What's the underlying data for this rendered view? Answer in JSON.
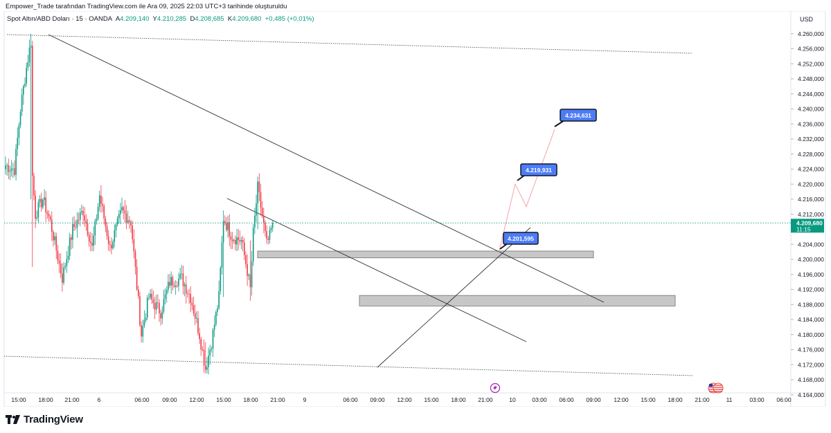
{
  "header": {
    "title": "Empower_Trade tarafından TradingView.com ile Ara 09, 2025 22:03 UTC+3 tarihinde oluşturuldu"
  },
  "ohlc": {
    "symbol": "Spot Altın/ABD Doları · 15 · OANDA",
    "open_label": "A",
    "open": "4.209,140",
    "high_label": "Y",
    "high": "4.210,285",
    "low_label": "D",
    "low": "4.208,685",
    "close_label": "K",
    "close": "4.209,680",
    "change": "+0,485 (+0,01%)"
  },
  "price_axis": {
    "currency": "USD"
  },
  "current_price": {
    "value": "4.209,680",
    "countdown": "11:15"
  },
  "footer": {
    "brand": "TradingView"
  },
  "colors": {
    "up": "#089981",
    "down": "#f23645",
    "accent": "#2962ff",
    "label": "#4d7cf7"
  },
  "chart_data": {
    "type": "candlestick",
    "title": "",
    "ylim": [
      4162,
      4262
    ],
    "yticks": [
      "4.260,000",
      "4.256,000",
      "4.252,000",
      "4.248,000",
      "4.244,000",
      "4.240,000",
      "4.236,000",
      "4.232,000",
      "4.228,000",
      "4.224,000",
      "4.220,000",
      "4.216,000",
      "4.212,000",
      "4.208,000",
      "4.204,000",
      "4.200,000",
      "4.196,000",
      "4.192,000",
      "4.188,000",
      "4.184,000",
      "4.180,000",
      "4.176,000",
      "4.172,000",
      "4.168,000",
      "4.164,000"
    ],
    "xticks": [
      "15:00",
      "18:00",
      "21:00",
      "6",
      "06:00",
      "09:00",
      "12:00",
      "15:00",
      "18:00",
      "21:00",
      "9",
      "06:00",
      "09:00",
      "12:00",
      "15:00",
      "18:00",
      "21:00",
      "10",
      "03:00",
      "06:00",
      "09:00",
      "12:00",
      "15:00",
      "18:00",
      "21:00",
      "11",
      "03:00",
      "06:00"
    ],
    "anchors": [
      {
        "i": 0,
        "p": 4225
      },
      {
        "i": 6,
        "p": 4224
      },
      {
        "i": 10,
        "p": 4240
      },
      {
        "i": 14,
        "p": 4251
      },
      {
        "i": 17,
        "p": 4258
      },
      {
        "i": 18,
        "p": 4222
      },
      {
        "i": 20,
        "p": 4212
      },
      {
        "i": 25,
        "p": 4216
      },
      {
        "i": 30,
        "p": 4210
      },
      {
        "i": 38,
        "p": 4195
      },
      {
        "i": 45,
        "p": 4208
      },
      {
        "i": 52,
        "p": 4213
      },
      {
        "i": 58,
        "p": 4203
      },
      {
        "i": 63,
        "p": 4217
      },
      {
        "i": 70,
        "p": 4203
      },
      {
        "i": 78,
        "p": 4213
      },
      {
        "i": 84,
        "p": 4210
      },
      {
        "i": 91,
        "p": 4180
      },
      {
        "i": 96,
        "p": 4190
      },
      {
        "i": 104,
        "p": 4186
      },
      {
        "i": 110,
        "p": 4194
      },
      {
        "i": 118,
        "p": 4195
      },
      {
        "i": 124,
        "p": 4190
      },
      {
        "i": 130,
        "p": 4180
      },
      {
        "i": 134,
        "p": 4171
      },
      {
        "i": 138,
        "p": 4178
      },
      {
        "i": 143,
        "p": 4190
      },
      {
        "i": 146,
        "p": 4211
      },
      {
        "i": 152,
        "p": 4206
      },
      {
        "i": 158,
        "p": 4205
      },
      {
        "i": 162,
        "p": 4197
      },
      {
        "i": 164,
        "p": 4192
      },
      {
        "i": 166,
        "p": 4207
      },
      {
        "i": 169,
        "p": 4219
      },
      {
        "i": 171,
        "p": 4214
      },
      {
        "i": 175,
        "p": 4204
      },
      {
        "i": 177,
        "p": 4206
      },
      {
        "i": 179,
        "p": 4209.68
      }
    ],
    "zones": [
      {
        "from": "06:00 (Dec 8)",
        "to": "06:00 (Dec 10)",
        "low": 4200.4,
        "high": 4202.2
      },
      {
        "from": "21:00 (Dec 8)",
        "to": "18:00 (Dec 10)",
        "low": 4187.6,
        "high": 4190.4
      }
    ],
    "projection": [
      4201.6,
      4220.0,
      4214.0,
      4234.6
    ],
    "targets": [
      "4.234,631",
      "4.219,931",
      "4.201,595"
    ],
    "events": [
      {
        "icon": "lightning-icon"
      },
      {
        "icon": "us-flag-icon"
      }
    ]
  }
}
